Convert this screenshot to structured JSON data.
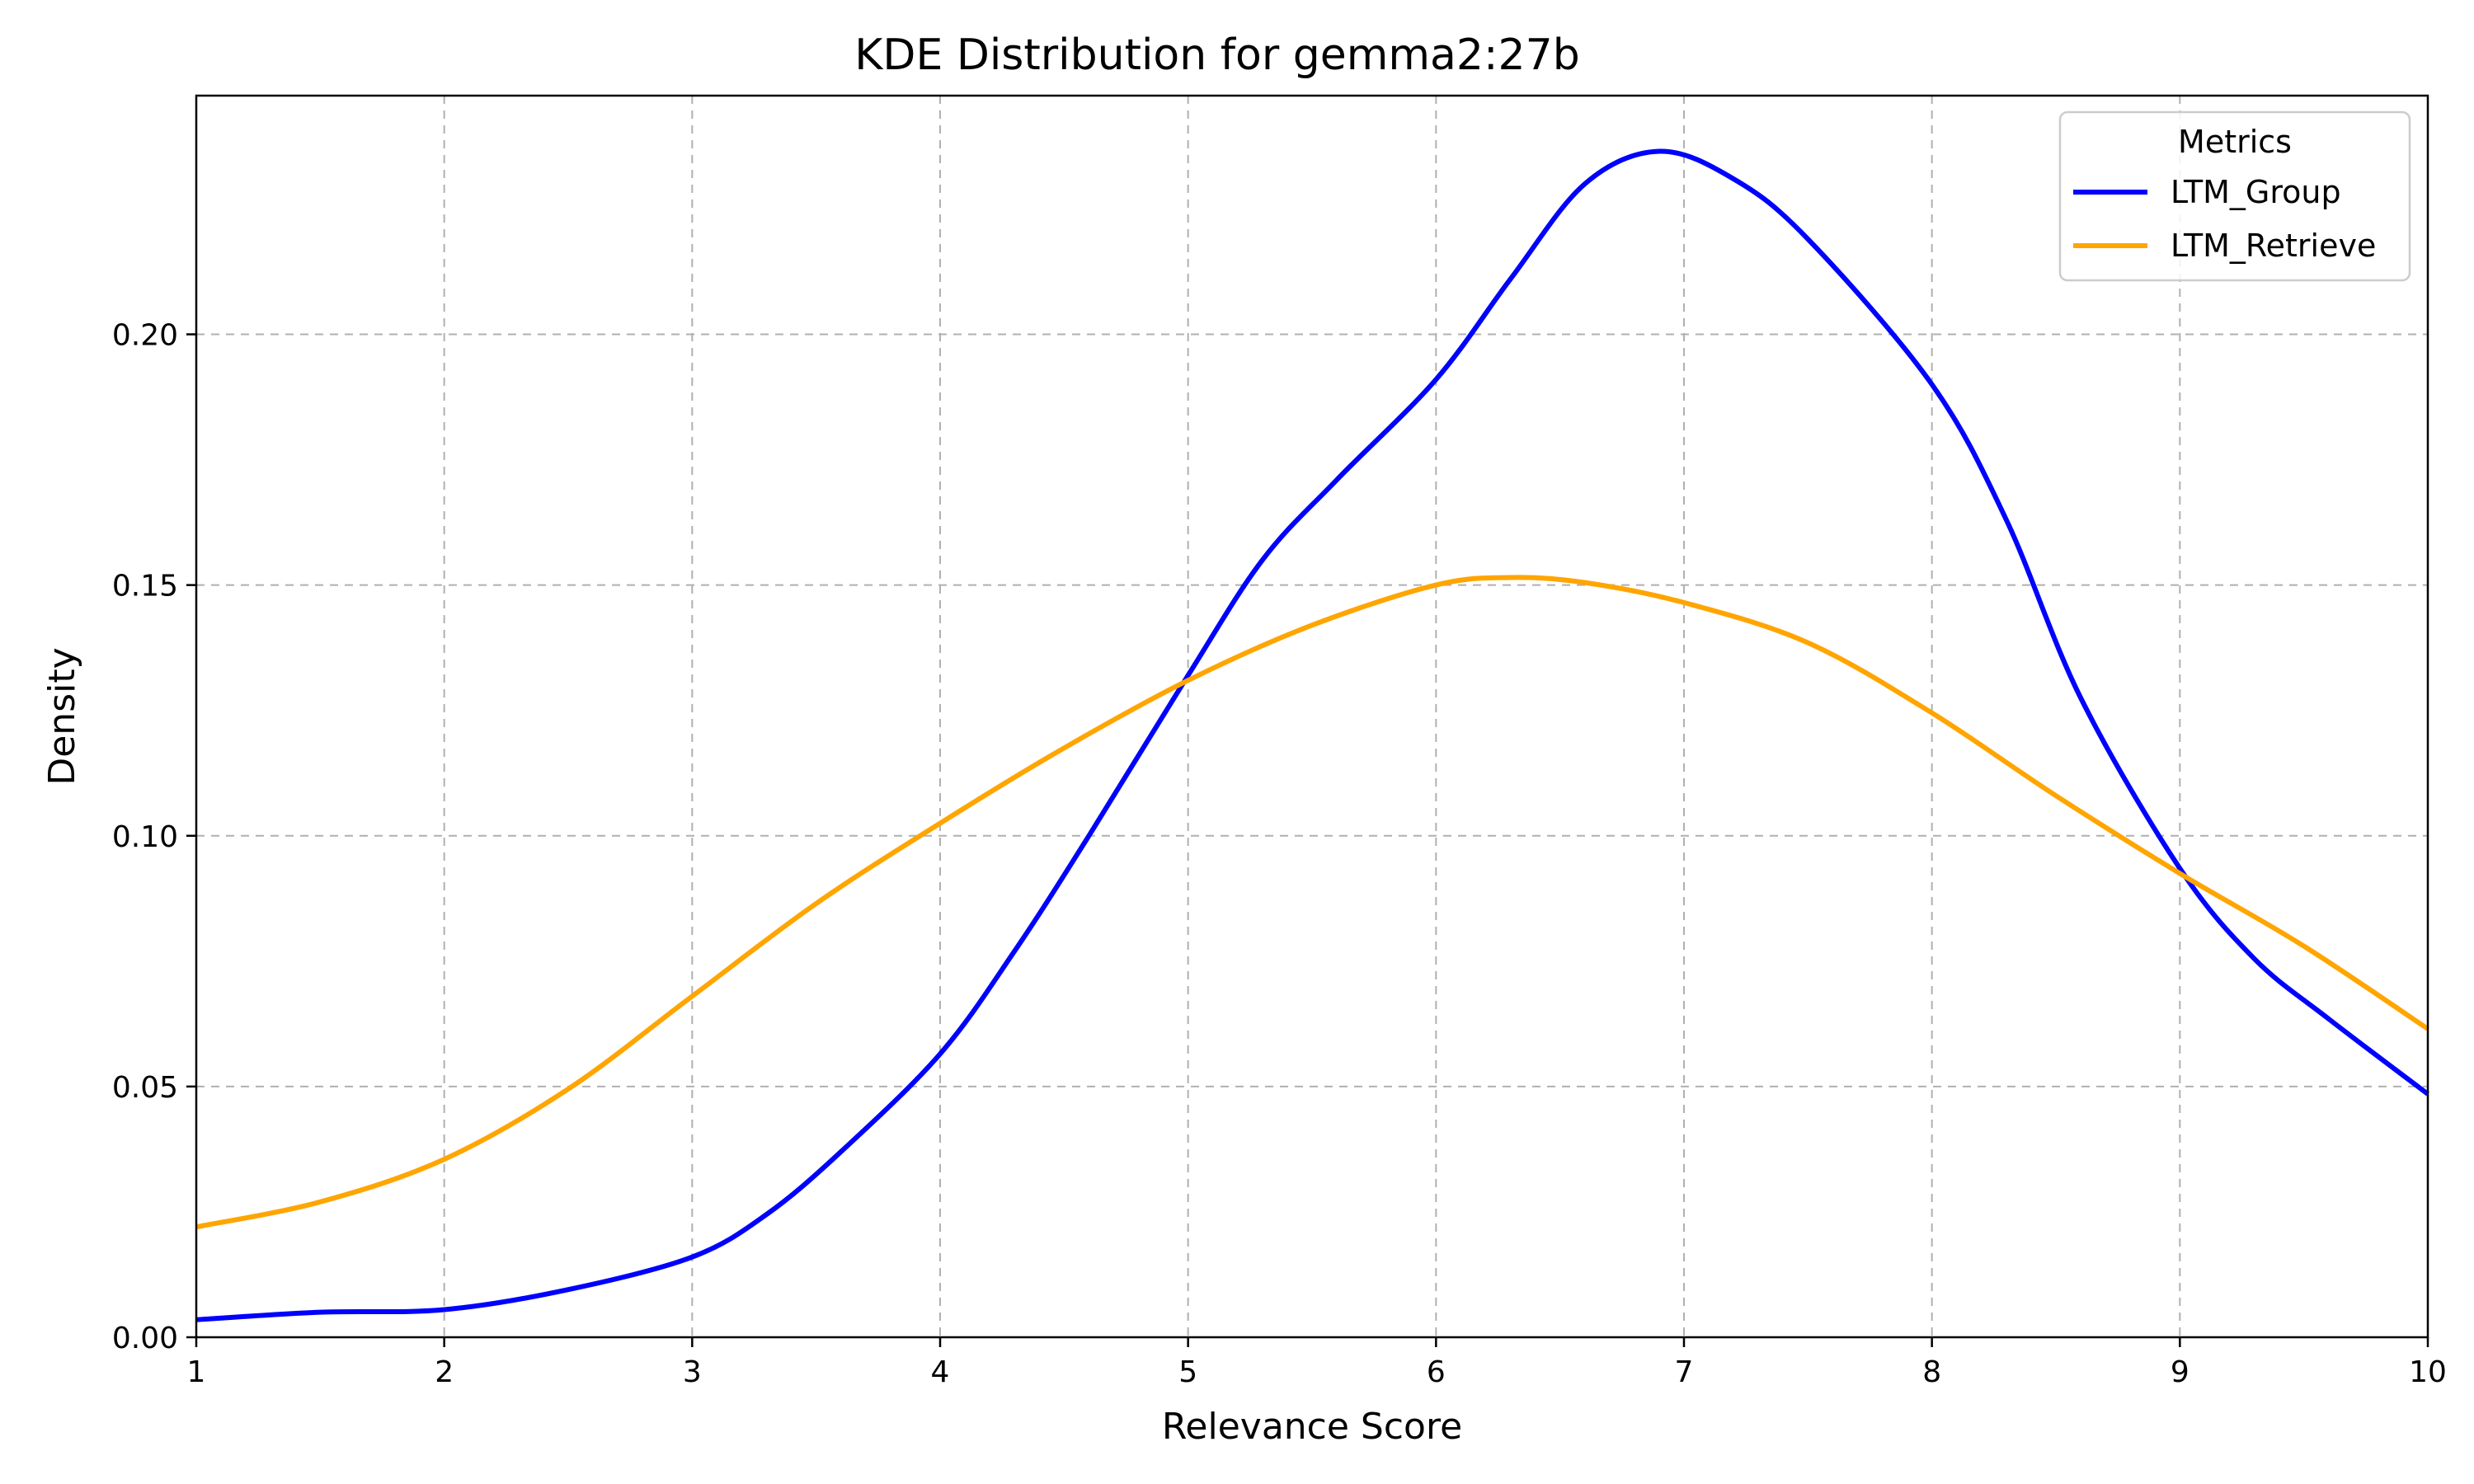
{
  "chart_data": {
    "type": "line",
    "title": "KDE Distribution for gemma2:27b",
    "xlabel": "Relevance Score",
    "ylabel": "Density",
    "xlim": [
      1,
      10
    ],
    "ylim": [
      0,
      0.2476
    ],
    "x_ticks": [
      1,
      2,
      3,
      4,
      5,
      6,
      7,
      8,
      9,
      10
    ],
    "y_ticks": [
      0.0,
      0.05,
      0.1,
      0.15,
      0.2
    ],
    "x_tick_labels": [
      "1",
      "2",
      "3",
      "4",
      "5",
      "6",
      "7",
      "8",
      "9",
      "10"
    ],
    "y_tick_labels": [
      "0.00",
      "0.05",
      "0.10",
      "0.15",
      "0.20"
    ],
    "grid": true,
    "legend": {
      "title": "Metrics",
      "placement": "top-right"
    },
    "series": [
      {
        "name": "LTM_Group",
        "color": "#0000ff",
        "x": [
          1.0,
          1.5,
          2.0,
          2.5,
          3.0,
          3.3,
          3.6,
          4.0,
          4.3,
          4.6,
          5.0,
          5.3,
          5.6,
          6.0,
          6.3,
          6.6,
          6.9,
          7.2,
          7.5,
          8.0,
          8.3,
          8.6,
          9.0,
          9.3,
          9.6,
          10.0
        ],
        "y": [
          0.0035,
          0.005,
          0.0055,
          0.0095,
          0.016,
          0.0245,
          0.037,
          0.0565,
          0.077,
          0.1,
          0.132,
          0.155,
          0.171,
          0.191,
          0.211,
          0.23,
          0.2365,
          0.231,
          0.219,
          0.19,
          0.163,
          0.1275,
          0.0935,
          0.0755,
          0.0635,
          0.0485
        ]
      },
      {
        "name": "LTM_Retrieve",
        "color": "#ffa500",
        "x": [
          1.0,
          1.5,
          2.0,
          2.5,
          3.0,
          3.5,
          4.0,
          4.5,
          5.0,
          5.5,
          6.0,
          6.3,
          6.6,
          7.0,
          7.5,
          8.0,
          8.5,
          9.0,
          9.5,
          10.0
        ],
        "y": [
          0.022,
          0.027,
          0.0355,
          0.0495,
          0.068,
          0.0865,
          0.1025,
          0.1175,
          0.131,
          0.142,
          0.15,
          0.1515,
          0.1505,
          0.1465,
          0.1385,
          0.1245,
          0.108,
          0.0925,
          0.078,
          0.0615
        ]
      }
    ]
  }
}
